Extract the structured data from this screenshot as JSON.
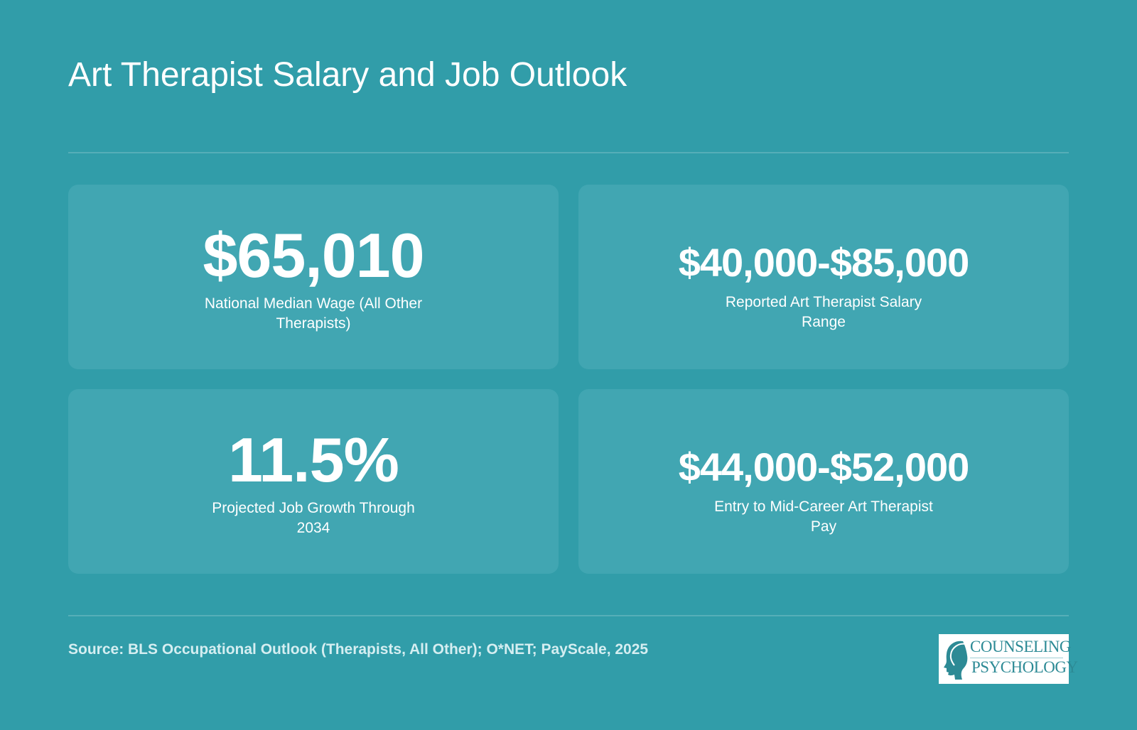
{
  "title": "Art Therapist Salary and Job Outlook",
  "cards": [
    {
      "value": "$65,010",
      "label": "National Median Wage (All Other Therapists)"
    },
    {
      "value": "$40,000-$85,000",
      "label": "Reported Art Therapist Salary Range"
    },
    {
      "value": "11.5%",
      "label": "Projected Job Growth Through 2034"
    },
    {
      "value": "$44,000-$52,000",
      "label": "Entry to Mid-Career Art Therapist Pay"
    }
  ],
  "source": "Source: BLS Occupational Outlook (Therapists, All Other); O*NET; PayScale, 2025",
  "logo": {
    "line1": "COUNSELING",
    "line2": "PSYCHOLOGY"
  },
  "colors": {
    "background": "#319da9",
    "card": "#41a6b2",
    "logo_accent": "#2d8a95"
  }
}
